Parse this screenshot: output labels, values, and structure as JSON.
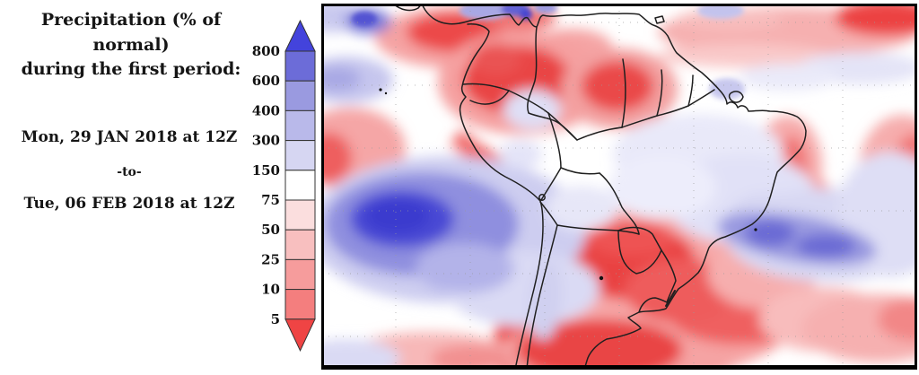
{
  "panel": {
    "title_line1": "Precipitation (% of normal)",
    "title_line2": "during the first period:",
    "period_start": "Mon, 29 JAN 2018 at 12Z",
    "separator": "-to-",
    "period_end": "Tue, 06 FEB 2018 at 12Z"
  },
  "colorbar": {
    "unit": "% of normal",
    "tick_labels": [
      "800",
      "600",
      "400",
      "300",
      "150",
      "75",
      "50",
      "25",
      "10",
      "5"
    ],
    "segment_colors": [
      "#6C6CD8",
      "#9A9AE0",
      "#B9B9EA",
      "#D6D6F2",
      "#FFFFFF",
      "#FBDEDE",
      "#F8BFBF",
      "#F69C9C",
      "#F47E7E"
    ],
    "arrow_top_color": "#4343DC",
    "arrow_bottom_color": "#EF4444",
    "outline_color": "#333333"
  },
  "map": {
    "background": "#FFFFFF",
    "border_color": "#000000",
    "coastline_color": "#1F1F1F",
    "gridline_color": "#9A9A9A",
    "regions": [
      {
        "name": "southeast-pacific-wet-anomaly",
        "color": "#3A3ACE"
      },
      {
        "name": "colombia-venezuela-dry-anomaly",
        "color": "#E94545"
      },
      {
        "name": "guyana-east-venezuela-dry-anomaly",
        "color": "#EA4A4A"
      },
      {
        "name": "southern-brazil-paraguay-argentina-dry-anomaly",
        "color": "#E94343"
      },
      {
        "name": "peru-chile-coast-dry-anomaly",
        "color": "#EF5454"
      },
      {
        "name": "northeast-brazil-coast-dry-anomaly",
        "color": "#F07272"
      },
      {
        "name": "tropical-atlantic-dry-band",
        "color": "#F6B0B0"
      },
      {
        "name": "south-atlantic-wet-band",
        "color": "#6A6AD4"
      },
      {
        "name": "central-brazil-near-normal",
        "color": "#E9E9F9"
      }
    ]
  }
}
